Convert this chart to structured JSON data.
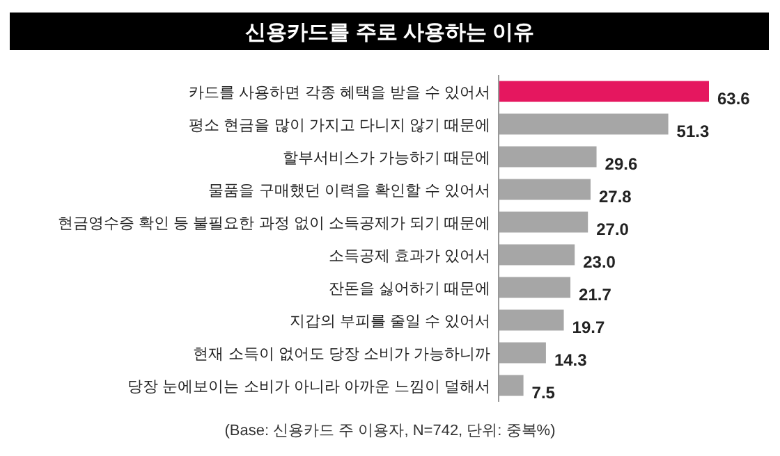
{
  "chart_data": {
    "type": "bar",
    "orientation": "horizontal",
    "title": "신용카드를 주로 사용하는 이유",
    "categories": [
      "카드를 사용하면 각종 혜택을 받을 수 있어서",
      "평소 현금을 많이 가지고 다니지 않기 때문에",
      "할부서비스가 가능하기 때문에",
      "물품을 구매했던 이력을 확인할 수 있어서",
      "현금영수증 확인 등 불필요한 과정 없이 소득공제가 되기 때문에",
      "소득공제 효과가 있어서",
      "잔돈을 싫어하기 때문에",
      "지갑의 부피를 줄일 수 있어서",
      "현재 소득이 없어도 당장 소비가 가능하니까",
      "당장 눈에보이는 소비가 아니라 아까운 느낌이 덜해서"
    ],
    "values": [
      63.6,
      51.3,
      29.6,
      27.8,
      27.0,
      23.0,
      21.7,
      19.7,
      14.3,
      7.5
    ],
    "value_labels": [
      "63.6",
      "51.3",
      "29.6",
      "27.8",
      "27.0",
      "23.0",
      "21.7",
      "19.7",
      "14.3",
      "7.5"
    ],
    "colors": [
      "#e5175f",
      "#a6a6a6",
      "#a6a6a6",
      "#a6a6a6",
      "#a6a6a6",
      "#a6a6a6",
      "#a6a6a6",
      "#a6a6a6",
      "#a6a6a6",
      "#a6a6a6"
    ],
    "annotations": [
      "(Base: 신용카드 주 이용자, N=742, 단위: 중복%)"
    ]
  }
}
